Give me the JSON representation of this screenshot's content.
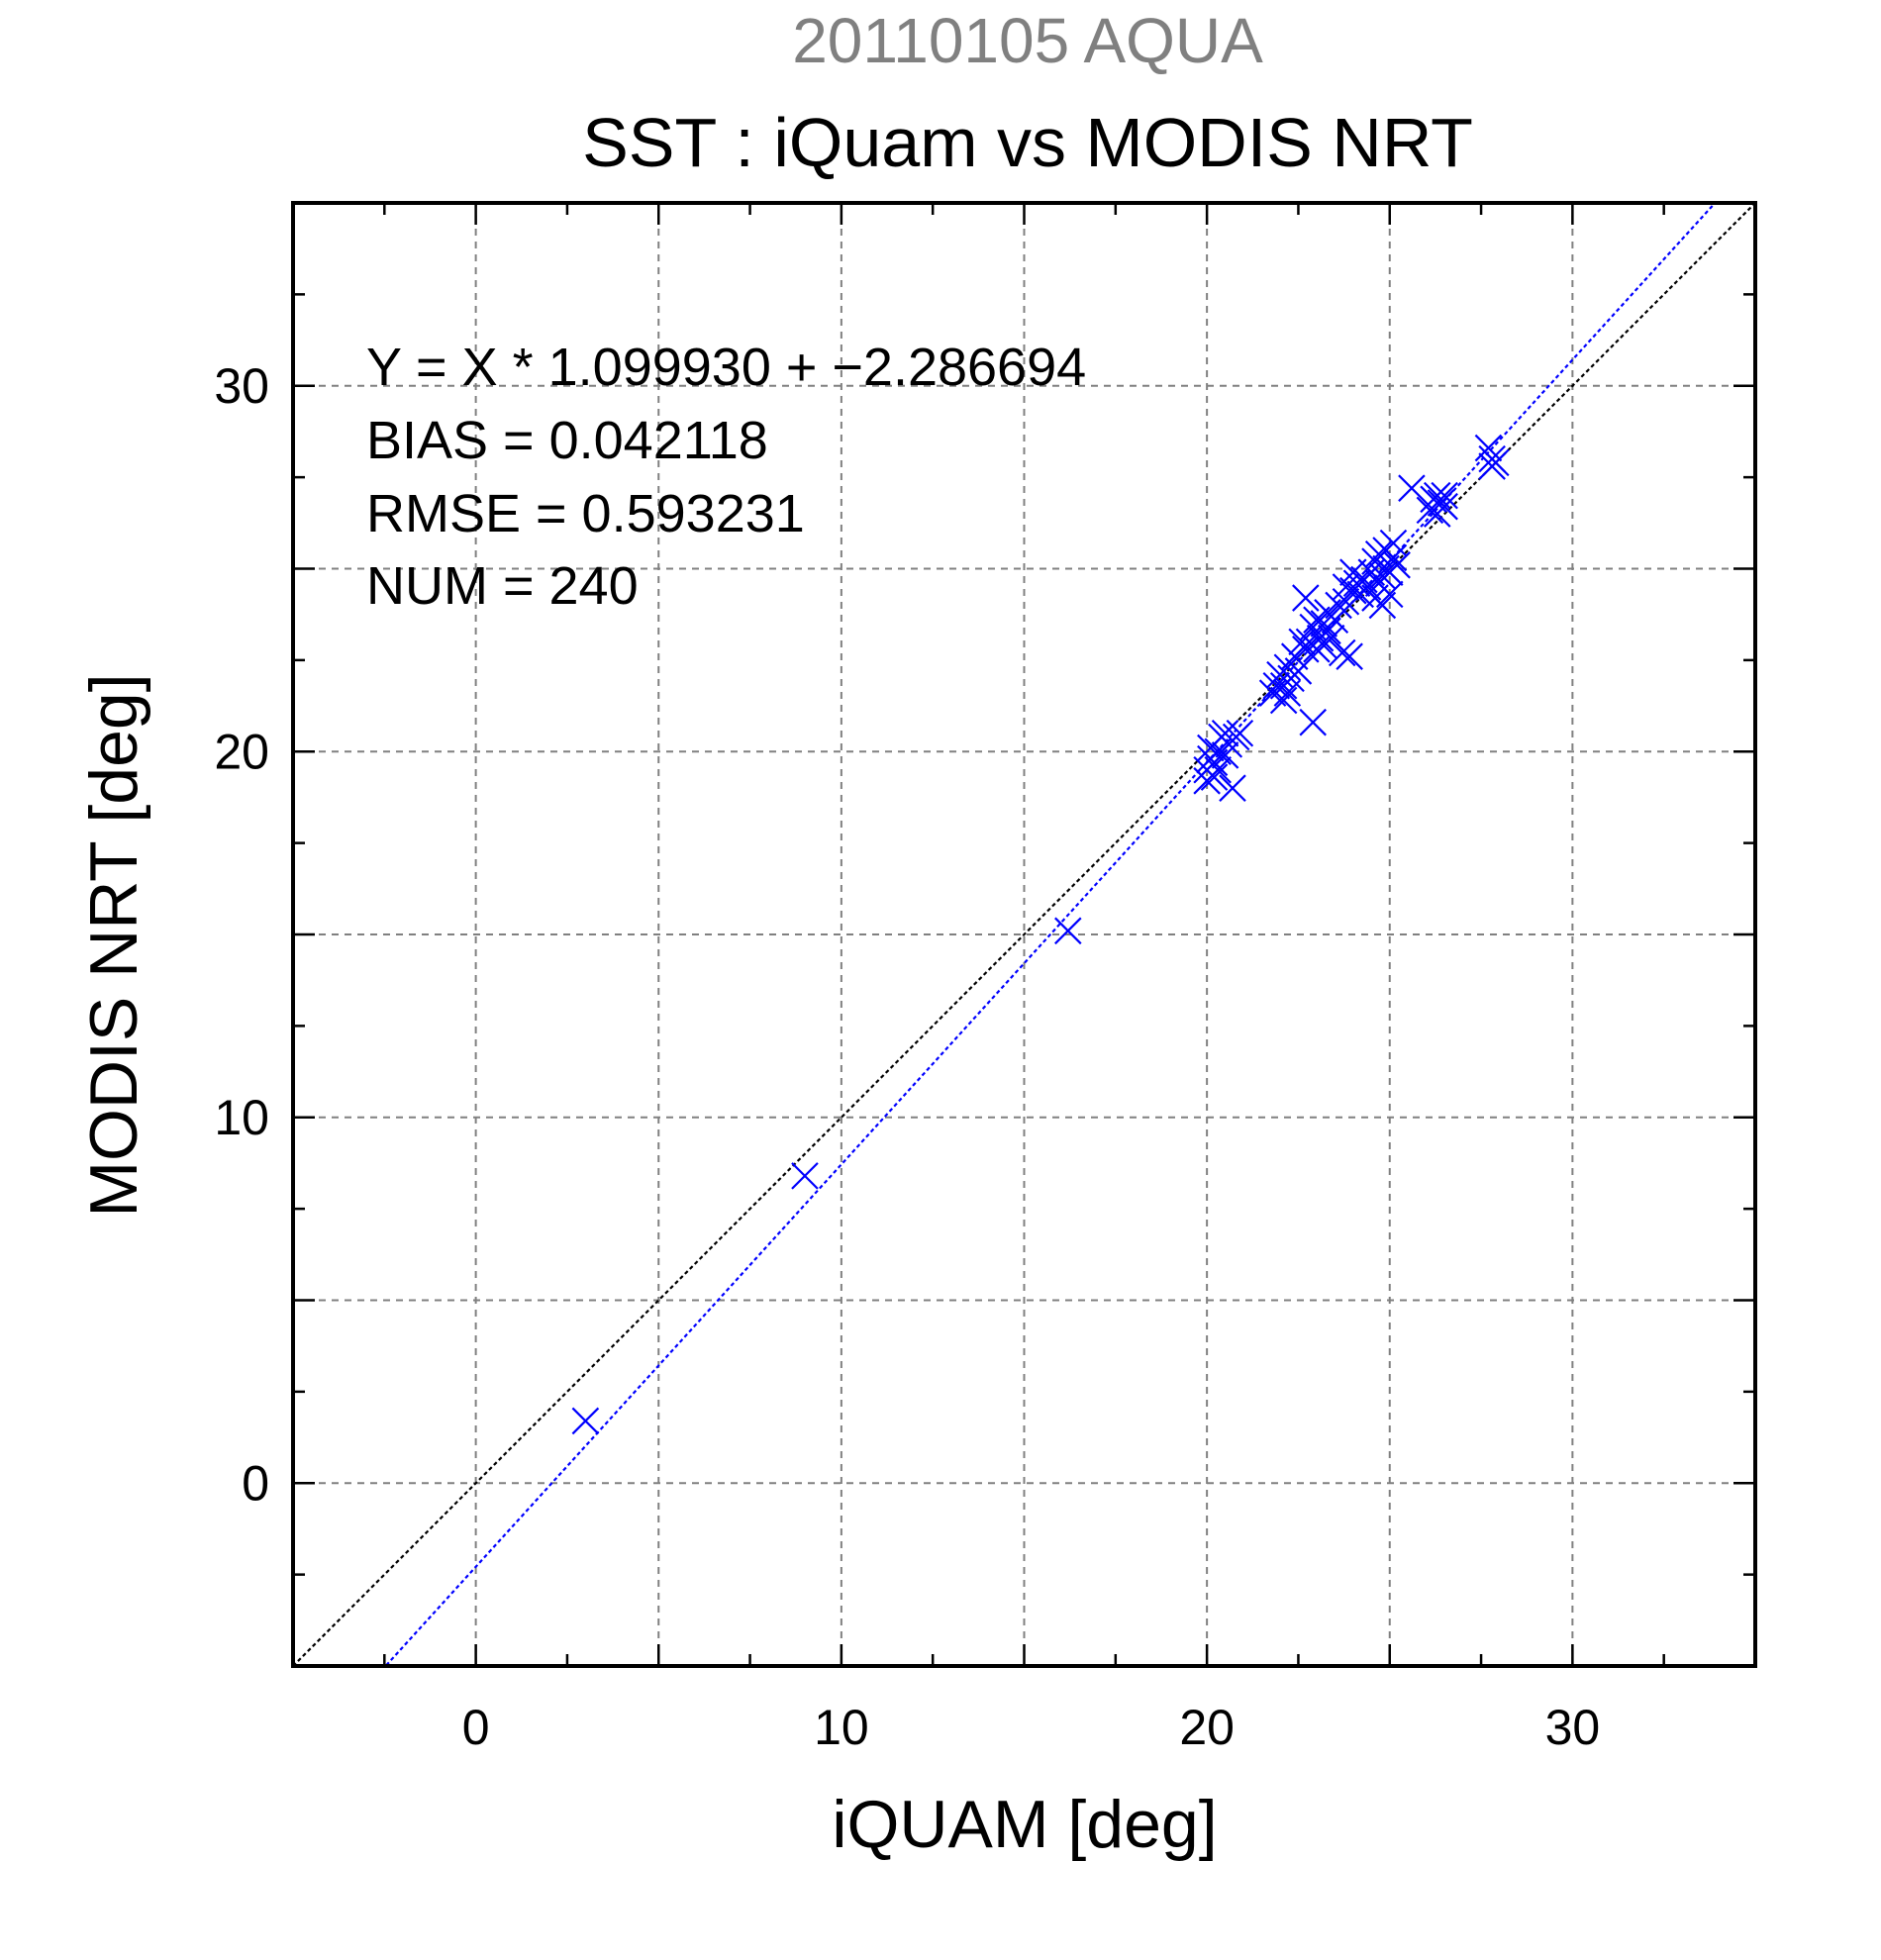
{
  "chart_data": {
    "type": "scatter",
    "title": "SST : iQuam vs MODIS NRT",
    "subtitle": "20110105 AQUA",
    "xlabel": "iQUAM [deg]",
    "ylabel": "MODIS NRT [deg]",
    "xlim": [
      -5,
      35
    ],
    "ylim": [
      -5,
      35
    ],
    "grid": true,
    "xticks": [
      "0",
      "10",
      "20",
      "30"
    ],
    "yticks": [
      "0",
      "10",
      "20",
      "30"
    ],
    "stats": [
      "Y = X * 1.099930 + −2.286694",
      "BIAS = 0.042118",
      "RMSE = 0.593231",
      "NUM = 240"
    ],
    "fit": {
      "slope": 1.09993,
      "intercept": -2.286694
    },
    "colors": {
      "points": "#0000ff",
      "fit_line": "#0000ff",
      "identity_line": "#000000",
      "subtitle": "#808080",
      "grid": "#808080"
    },
    "points": [
      [
        3.0,
        1.7
      ],
      [
        9.0,
        8.4
      ],
      [
        16.2,
        15.1
      ],
      [
        20.0,
        19.2
      ],
      [
        20.0,
        19.5
      ],
      [
        20.1,
        19.8
      ],
      [
        20.1,
        20.1
      ],
      [
        20.2,
        19.3
      ],
      [
        20.2,
        19.7
      ],
      [
        20.3,
        19.5
      ],
      [
        20.3,
        20.0
      ],
      [
        20.4,
        20.4
      ],
      [
        20.5,
        19.9
      ],
      [
        20.5,
        20.5
      ],
      [
        20.6,
        20.2
      ],
      [
        20.7,
        19.0
      ],
      [
        20.8,
        20.4
      ],
      [
        20.9,
        20.5
      ],
      [
        21.8,
        21.6
      ],
      [
        21.9,
        21.8
      ],
      [
        22.0,
        22.1
      ],
      [
        22.1,
        21.4
      ],
      [
        22.1,
        21.8
      ],
      [
        22.2,
        21.6
      ],
      [
        22.2,
        22.3
      ],
      [
        22.3,
        22.0
      ],
      [
        22.4,
        22.6
      ],
      [
        22.5,
        22.2
      ],
      [
        22.6,
        23.0
      ],
      [
        22.7,
        22.8
      ],
      [
        22.7,
        24.2
      ],
      [
        22.8,
        23.0
      ],
      [
        22.9,
        20.8
      ],
      [
        22.9,
        23.4
      ],
      [
        23.0,
        22.8
      ],
      [
        23.0,
        23.6
      ],
      [
        23.1,
        23.1
      ],
      [
        23.2,
        23.5
      ],
      [
        23.2,
        22.9
      ],
      [
        23.3,
        23.3
      ],
      [
        23.3,
        23.8
      ],
      [
        23.4,
        23.1
      ],
      [
        23.5,
        23.6
      ],
      [
        23.6,
        24.0
      ],
      [
        23.7,
        22.7
      ],
      [
        23.8,
        24.5
      ],
      [
        23.8,
        24.1
      ],
      [
        23.9,
        22.6
      ],
      [
        24.0,
        24.4
      ],
      [
        24.0,
        24.9
      ],
      [
        24.1,
        24.6
      ],
      [
        24.2,
        24.3
      ],
      [
        24.3,
        24.7
      ],
      [
        24.4,
        24.5
      ],
      [
        24.5,
        24.9
      ],
      [
        24.6,
        24.2
      ],
      [
        24.6,
        25.2
      ],
      [
        24.7,
        24.6
      ],
      [
        24.7,
        25.4
      ],
      [
        24.8,
        24.0
      ],
      [
        24.8,
        24.8
      ],
      [
        24.9,
        25.0
      ],
      [
        24.9,
        25.5
      ],
      [
        25.0,
        24.3
      ],
      [
        25.0,
        24.9
      ],
      [
        25.1,
        25.3
      ],
      [
        25.1,
        25.7
      ],
      [
        25.2,
        25.1
      ],
      [
        25.6,
        27.2
      ],
      [
        26.1,
        26.6
      ],
      [
        26.2,
        26.9
      ],
      [
        26.3,
        26.5
      ],
      [
        26.3,
        27.0
      ],
      [
        26.4,
        26.8
      ],
      [
        26.5,
        26.7
      ],
      [
        26.5,
        27.0
      ],
      [
        27.7,
        28.3
      ],
      [
        27.8,
        28.0
      ],
      [
        27.8,
        27.8
      ],
      [
        27.9,
        27.9
      ]
    ]
  }
}
